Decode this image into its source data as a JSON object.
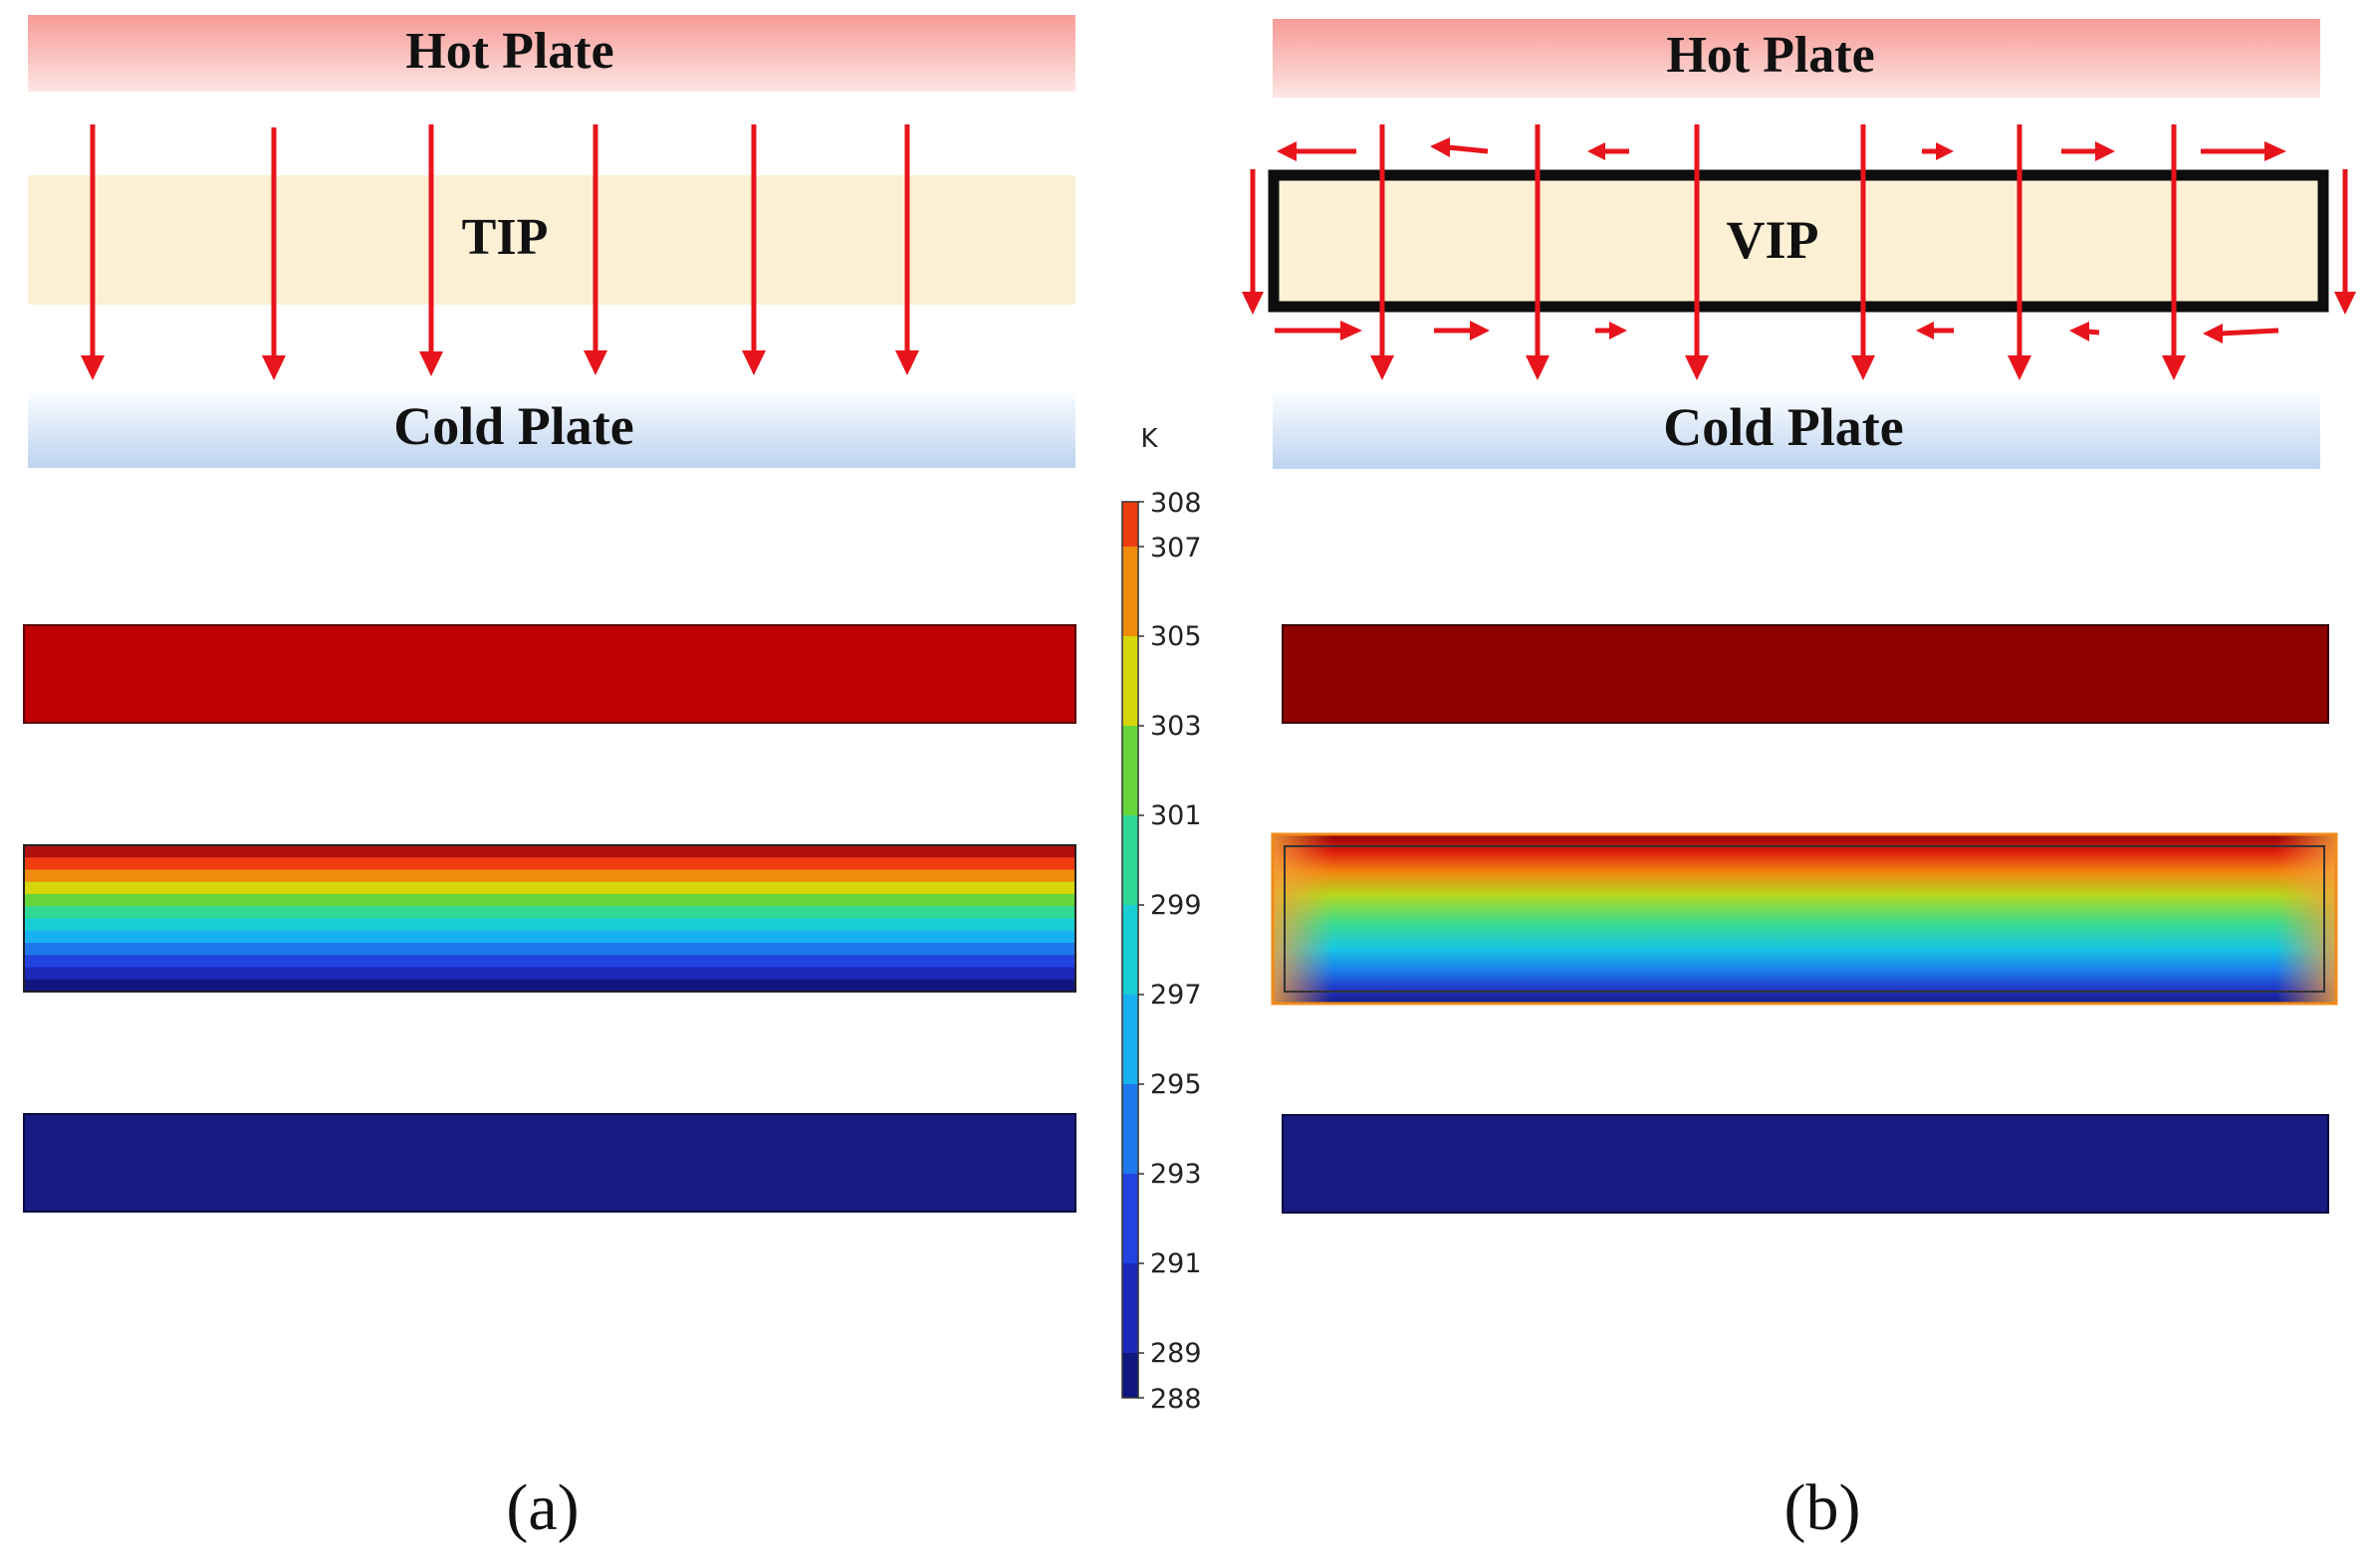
{
  "panel_a": {
    "hot_plate": "Hot Plate",
    "cold_plate": "Cold Plate",
    "insulation": "TIP",
    "caption": "(a)"
  },
  "panel_b": {
    "hot_plate": "Hot Plate",
    "cold_plate": "Cold Plate",
    "insulation": "VIP",
    "caption": "(b)"
  },
  "colorbar": {
    "unit": "K",
    "min": 288,
    "max": 308,
    "tick_labels": [
      "308",
      "307",
      "305",
      "303",
      "301",
      "299",
      "297",
      "295",
      "293",
      "291",
      "289",
      "288"
    ],
    "ticks": [
      308,
      307,
      305,
      303,
      301,
      299,
      297,
      295,
      293,
      291,
      289,
      288
    ],
    "band_colors": [
      "#11177f",
      "#1c28b8",
      "#2343e0",
      "#1f77ec",
      "#18b1f0",
      "#17cfd3",
      "#2fd893",
      "#67d63a",
      "#d6d60a",
      "#f08b0b",
      "#ef3d10",
      "#b10e0e"
    ]
  },
  "colors": {
    "arrow": "#e8141c",
    "hot_plate_gradient": [
      "#f7a4a0",
      "#fde2df"
    ],
    "cold_plate_gradient": [
      "#fdfdff",
      "#c2d6f1"
    ],
    "tip_fill": "#fdf0d5",
    "vip_fill": "#fdf0d5",
    "hot_field_a": "#bf0000",
    "hot_field_b": "#8f0000",
    "cold_field": "#171a80"
  }
}
